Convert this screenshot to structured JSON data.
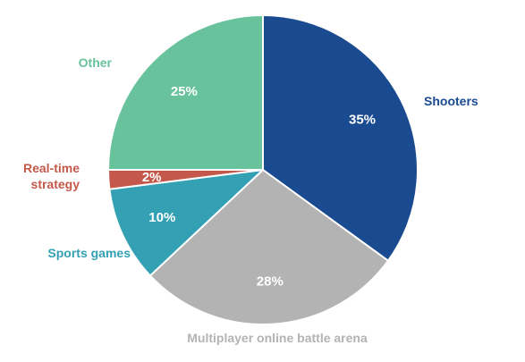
{
  "chart_data": {
    "type": "pie",
    "title": "",
    "start_angle_deg": 0,
    "direction": "clockwise",
    "slices": [
      {
        "name": "Shooters",
        "value": 35,
        "label": "35%",
        "color": "#1a4a8f"
      },
      {
        "name": "Multiplayer online battle arena",
        "value": 28,
        "label": "28%",
        "color": "#b3b3b3"
      },
      {
        "name": "Sports games",
        "value": 10,
        "label": "10%",
        "color": "#34a0b4"
      },
      {
        "name": "Real-time strategy",
        "value": 2,
        "label": "2%",
        "color": "#c4584a",
        "label_lines": [
          "Real-time",
          "strategy"
        ]
      },
      {
        "name": "Other",
        "value": 25,
        "label": "25%",
        "color": "#68c29c"
      }
    ]
  }
}
